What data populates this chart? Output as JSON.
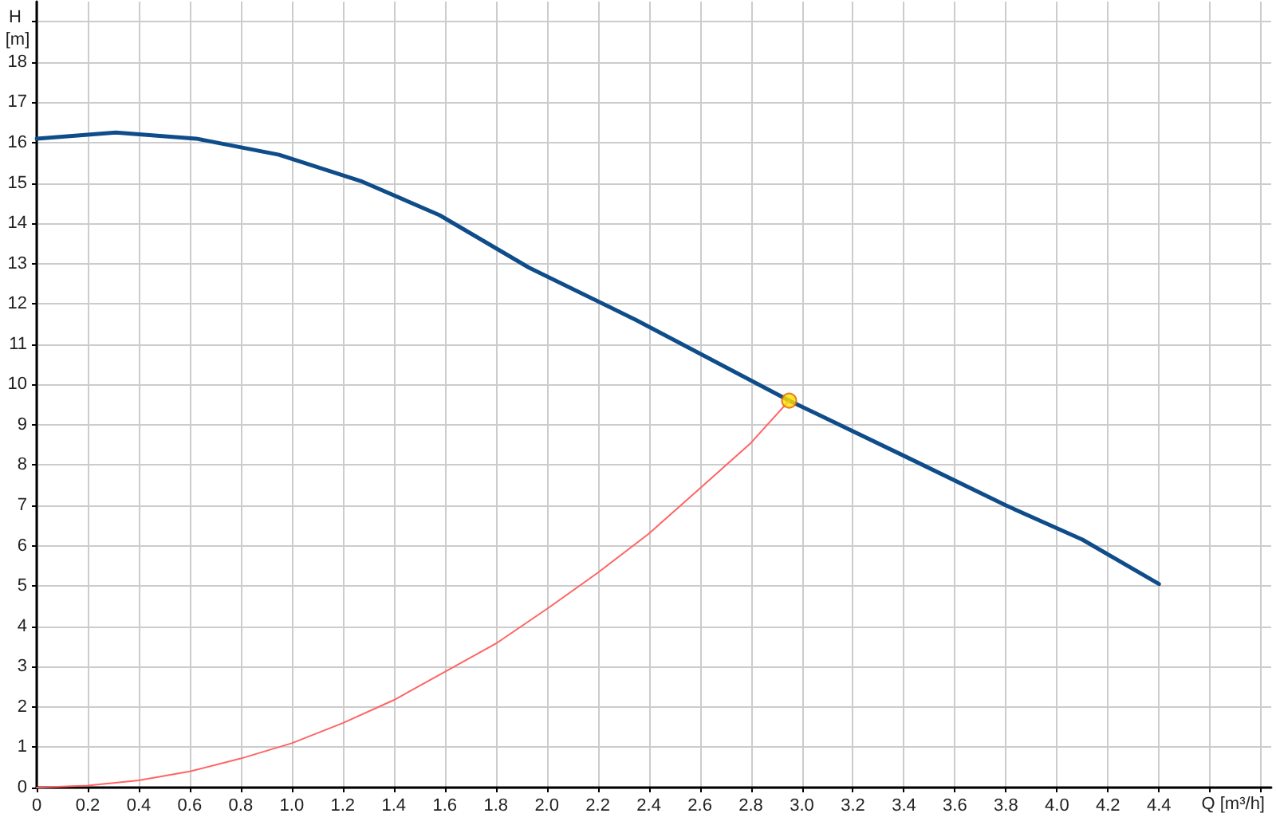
{
  "chart_data": {
    "type": "line",
    "xlabel": "Q [m³/h]",
    "ylabel": "H [m]",
    "xlim": [
      0,
      4.84
    ],
    "ylim": [
      0,
      19.5
    ],
    "xticks": [
      0,
      0.2,
      0.4,
      0.6,
      0.8,
      {
        "value": 1,
        "label": "1.0"
      },
      1.2,
      1.4,
      1.6,
      1.8,
      {
        "value": 2,
        "label": "2.0"
      },
      2.2,
      2.4,
      2.6,
      2.8,
      {
        "value": 3,
        "label": "3.0"
      },
      3.2,
      3.4,
      3.6,
      3.8,
      {
        "value": 4,
        "label": "4.0"
      },
      4.2,
      4.4,
      {
        "value": 4.6,
        "label": null
      },
      {
        "value": 4.8,
        "label": null
      }
    ],
    "yticks": [
      0,
      1,
      2,
      3,
      4,
      5,
      6,
      7,
      8,
      9,
      10,
      11,
      12,
      13,
      14,
      15,
      16,
      17,
      18,
      {
        "value": 19,
        "label": null
      }
    ],
    "grid": true,
    "series": [
      {
        "color": "#0f4c8a",
        "x": [
          0,
          0.31,
          0.625,
          0.95,
          1.27,
          1.58,
          1.93,
          2.35,
          2.95,
          3.41,
          3.8,
          4.1,
          4.4
        ],
        "values": [
          16.1,
          16.25,
          16.1,
          15.7,
          15.05,
          14.2,
          12.9,
          11.6,
          9.6,
          8.2,
          7.0,
          6.15,
          5.05
        ]
      },
      {
        "color": "#ff6464",
        "x": [
          0,
          0.2,
          0.4,
          0.6,
          0.8,
          1.0,
          1.2,
          1.4,
          1.6,
          1.8,
          2.0,
          2.2,
          2.4,
          2.6,
          2.8,
          2.95
        ],
        "values": [
          0,
          0.05,
          0.18,
          0.4,
          0.72,
          1.1,
          1.6,
          2.17,
          2.87,
          3.57,
          4.43,
          5.33,
          6.3,
          7.42,
          8.55,
          9.6
        ]
      },
      {
        "type": "scatter",
        "marker": "circle",
        "color": "#ffe000",
        "x": [
          2.95
        ],
        "values": [
          9.6
        ]
      }
    ]
  }
}
